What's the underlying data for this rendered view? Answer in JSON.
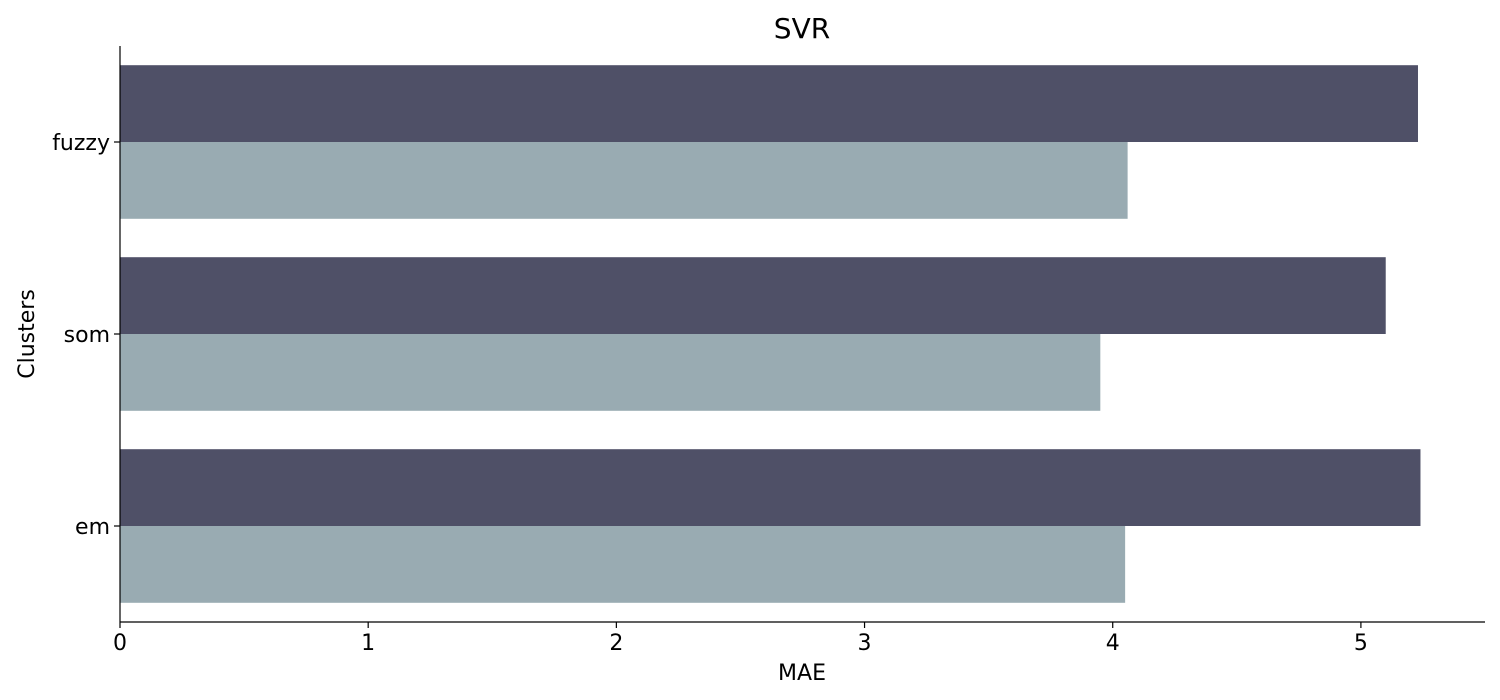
{
  "chart_data": {
    "type": "bar",
    "orientation": "horizontal",
    "title": "SVR",
    "xlabel": "MAE",
    "ylabel": "Clusters",
    "categories": [
      "fuzzy",
      "som",
      "em"
    ],
    "series": [
      {
        "color": "#4f5067",
        "values": [
          5.23,
          5.1,
          5.24
        ]
      },
      {
        "color": "#99abb2",
        "values": [
          4.06,
          3.95,
          4.05
        ]
      }
    ],
    "xlim": [
      0,
      5.5
    ],
    "xticks": [
      0,
      1,
      2,
      3,
      4,
      5
    ],
    "grid": false,
    "legend": "none"
  }
}
